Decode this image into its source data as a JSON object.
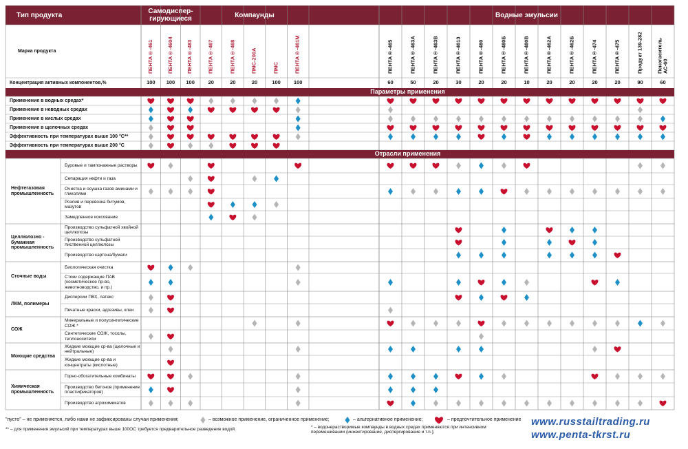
{
  "header": {
    "type_label": "Тип продукта",
    "brand_label": "Марка продукта",
    "concentration_label": "Концентрация активных компонентов,%"
  },
  "groups": [
    {
      "title": "Самодиспер-гирующиеся",
      "name_color": "#b0213a",
      "products": [
        {
          "name": "ПЕНТА®-461",
          "concentration": 100
        },
        {
          "name": "ПЕНТА®-4604",
          "concentration": 100
        },
        {
          "name": "ПЕНТА®-483",
          "concentration": 100
        }
      ]
    },
    {
      "title": "Компаунды",
      "name_color": "#b0213a",
      "products": [
        {
          "name": "ПЕНТА®-467",
          "concentration": 20
        },
        {
          "name": "ПЕНТА®-468",
          "concentration": 20
        },
        {
          "name": "ПМС-200А",
          "concentration": 20
        },
        {
          "name": "ПМС",
          "concentration": 100
        },
        {
          "name": "ПЕНТА®-461М",
          "concentration": 100
        }
      ]
    },
    {
      "title": "Водные эмульсии",
      "name_color": "#111111",
      "products": [
        {
          "name": "ПЕНТА®-465",
          "concentration": 60
        },
        {
          "name": "ПЕНТА®-463А",
          "concentration": 50
        },
        {
          "name": "ПЕНТА®-463В",
          "concentration": 20
        },
        {
          "name": "ПЕНТА®-4613",
          "concentration": 30
        },
        {
          "name": "ПЕНТА®-480",
          "concentration": 20
        },
        {
          "name": "ПЕНТА®-480Б",
          "concentration": 20
        },
        {
          "name": "ПЕНТА®-480В",
          "concentration": 10
        },
        {
          "name": "ПЕНТА®-462А",
          "concentration": 20
        },
        {
          "name": "ПЕНТА®-462Б",
          "concentration": 20
        },
        {
          "name": "ПЕНТА®-474",
          "concentration": 20
        },
        {
          "name": "ПЕНТА®-475",
          "concentration": 20
        },
        {
          "name": "Продукт 139-282",
          "concentration": 90
        },
        {
          "name": "Пеногаситель АС-60",
          "concentration": 60
        }
      ]
    }
  ],
  "parameters": {
    "title": "Параметры применения",
    "rows": [
      {
        "label": "Применение в водных средах*",
        "cells": [
          "h",
          "h",
          "h",
          "g",
          "g",
          "g",
          "g",
          "b",
          "h",
          "h",
          "h",
          "h",
          "h",
          "h",
          "h",
          "h",
          "h",
          "h",
          "h",
          "h",
          "h"
        ]
      },
      {
        "label": "Применение в неводных средах",
        "cells": [
          "b",
          "h",
          "b",
          "h",
          "h",
          "h",
          "h",
          "g",
          "g",
          null,
          null,
          null,
          null,
          null,
          null,
          null,
          null,
          null,
          null,
          "g",
          null
        ]
      },
      {
        "label": "Применение в кислых средах",
        "cells": [
          "b",
          "h",
          "h",
          null,
          null,
          null,
          null,
          "b",
          "g",
          "g",
          "g",
          "g",
          "g",
          "g",
          "g",
          "g",
          "g",
          "g",
          "g",
          "g",
          "b"
        ]
      },
      {
        "label": "Применение в щелочных средах",
        "cells": [
          "g",
          "h",
          "h",
          null,
          null,
          null,
          null,
          "b",
          "h",
          "h",
          "h",
          "h",
          "h",
          "h",
          "h",
          "h",
          "h",
          "h",
          "h",
          "h",
          "h"
        ]
      },
      {
        "label": "Эффективность при температурах выше 100 °С**",
        "cells": [
          "g",
          "h",
          "h",
          "h",
          "h",
          "h",
          "h",
          "g",
          "b",
          "b",
          "b",
          "b",
          "h",
          "b",
          "h",
          "b",
          "b",
          "b",
          "b",
          "b",
          "b"
        ]
      },
      {
        "label": "Эффективность при температурах выше 200 °С",
        "cells": [
          "g",
          "h",
          "g",
          "g",
          "h",
          "h",
          "h",
          null,
          null,
          null,
          null,
          null,
          null,
          null,
          null,
          null,
          null,
          null,
          null,
          null,
          null
        ]
      }
    ]
  },
  "industries": {
    "title": "Отрасли применения",
    "groups": [
      {
        "name": "Нефтегазовая промышленность",
        "rows": [
          {
            "label": "Буровые и тампонажные растворы",
            "cells": [
              "h",
              "g",
              null,
              "h",
              null,
              null,
              null,
              "h",
              "h",
              "h",
              "h",
              "g",
              "b",
              "g",
              "h",
              null,
              null,
              null,
              null,
              "g",
              "g"
            ]
          },
          {
            "label": "Сепарация нефти и газа",
            "cells": [
              null,
              null,
              "g",
              "h",
              null,
              "g",
              "b",
              null,
              null,
              null,
              null,
              null,
              null,
              null,
              null,
              null,
              null,
              null,
              null,
              null,
              null
            ]
          },
          {
            "label": "Очистка и осушка газов аминами и гликолями",
            "cells": [
              "g",
              "g",
              "g",
              "h",
              null,
              null,
              null,
              null,
              "b",
              "g",
              "g",
              "b",
              "b",
              "h",
              "g",
              "g",
              "g",
              "g",
              "g",
              "g",
              "g"
            ]
          },
          {
            "label": "Розлив и перевозка битумов, мазутов",
            "cells": [
              null,
              null,
              null,
              "h",
              "b",
              "b",
              "g",
              null,
              null,
              null,
              null,
              null,
              null,
              null,
              null,
              null,
              null,
              null,
              null,
              null,
              null
            ]
          },
          {
            "label": "Замедленное коксование",
            "cells": [
              null,
              null,
              null,
              "b",
              "h",
              "g",
              null,
              null,
              null,
              null,
              null,
              null,
              null,
              null,
              null,
              null,
              null,
              null,
              null,
              null,
              null
            ]
          }
        ]
      },
      {
        "name": "Целлюлозно - бумажная промышленность",
        "rows": [
          {
            "label": "Производство сульфатной хвойной целлюлозы",
            "cells": [
              null,
              null,
              null,
              null,
              null,
              null,
              null,
              null,
              null,
              null,
              null,
              "h",
              null,
              "b",
              null,
              "h",
              "b",
              "b",
              null,
              null,
              null
            ]
          },
          {
            "label": "Производство сульфатной лиственной целлюлозы",
            "cells": [
              null,
              null,
              null,
              null,
              null,
              null,
              null,
              null,
              null,
              null,
              null,
              "h",
              null,
              "b",
              null,
              "b",
              "h",
              "b",
              null,
              null,
              null
            ]
          },
          {
            "label": "Производство картона/бумаги",
            "cells": [
              null,
              null,
              null,
              null,
              null,
              null,
              null,
              null,
              null,
              null,
              null,
              "b",
              "b",
              "b",
              null,
              "b",
              "b",
              "b",
              "h",
              null,
              null
            ]
          }
        ]
      },
      {
        "name": "Сточные воды",
        "rows": [
          {
            "label": "Биологическая очистка",
            "cells": [
              "h",
              "b",
              "g",
              null,
              null,
              null,
              null,
              "g",
              null,
              null,
              null,
              null,
              null,
              null,
              null,
              null,
              null,
              null,
              null,
              null,
              null
            ]
          },
          {
            "label": "Стоки содержащие ПАВ (косметическое пр-во, животноводство, и пр.)",
            "cells": [
              "b",
              "b",
              null,
              null,
              null,
              null,
              null,
              "g",
              "b",
              null,
              null,
              "b",
              "h",
              "b",
              "g",
              null,
              null,
              "h",
              "b",
              null,
              null
            ]
          }
        ]
      },
      {
        "name": "ЛКМ, полимеры",
        "rows": [
          {
            "label": "Дисперсии ПВХ, латекс",
            "cells": [
              "g",
              "h",
              null,
              null,
              null,
              null,
              null,
              null,
              null,
              null,
              null,
              "h",
              "b",
              "h",
              "b",
              null,
              null,
              null,
              null,
              null,
              null
            ]
          },
          {
            "label": "Печатные краски, адгезивы, клеи",
            "cells": [
              "g",
              "h",
              null,
              null,
              null,
              null,
              null,
              null,
              "g",
              null,
              null,
              null,
              null,
              null,
              null,
              null,
              null,
              null,
              null,
              null,
              null
            ]
          }
        ]
      },
      {
        "name": "СОЖ",
        "rows": [
          {
            "label": "Минеральные и полусинтетические СОЖ *",
            "cells": [
              null,
              null,
              null,
              null,
              null,
              "g",
              null,
              "g",
              "h",
              "g",
              "g",
              "g",
              "h",
              "g",
              "g",
              "g",
              "g",
              "g",
              "g",
              "b",
              "g"
            ]
          },
          {
            "label": "Синтетические СОЖ, тосолы, теплоносители",
            "cells": [
              "g",
              "h",
              null,
              null,
              null,
              null,
              null,
              null,
              null,
              null,
              null,
              null,
              "g",
              null,
              null,
              null,
              null,
              null,
              null,
              null,
              null
            ]
          }
        ]
      },
      {
        "name": "Моющие средства",
        "rows": [
          {
            "label": "Жидкие моющие ср-ва (щелочные и нейтральные)",
            "cells": [
              null,
              "g",
              null,
              null,
              null,
              null,
              null,
              "g",
              "b",
              "b",
              null,
              "b",
              "b",
              null,
              null,
              null,
              null,
              "g",
              "h",
              null,
              null
            ]
          },
          {
            "label": "Жидкие моющие ср-ва и концентраты (кислотные)",
            "cells": [
              null,
              "h",
              null,
              null,
              null,
              null,
              null,
              null,
              null,
              null,
              null,
              null,
              null,
              null,
              null,
              null,
              null,
              null,
              null,
              null,
              null
            ]
          }
        ]
      },
      {
        "name": "Химическая промышленность",
        "rows": [
          {
            "label": "Горно-обогатительные комбинаты",
            "cells": [
              "h",
              "h",
              "g",
              null,
              null,
              null,
              null,
              "g",
              "b",
              "b",
              "b",
              "h",
              "b",
              "g",
              null,
              null,
              null,
              "h",
              "g",
              "g",
              "g"
            ]
          },
          {
            "label": "Производство бетонов (применение пластификаторов)",
            "cells": [
              "b",
              "h",
              null,
              null,
              null,
              null,
              null,
              "g",
              "b",
              "b",
              "b",
              null,
              null,
              null,
              null,
              null,
              null,
              null,
              null,
              null,
              null
            ]
          },
          {
            "label": "Производство агрохимикатов",
            "cells": [
              "g",
              "g",
              "g",
              null,
              null,
              null,
              null,
              "g",
              "h",
              "b",
              "g",
              "g",
              "g",
              "g",
              "g",
              "g",
              "g",
              "g",
              "g",
              "g",
              "h"
            ]
          }
        ]
      }
    ]
  },
  "legend": [
    {
      "text": "\"пусто\" – не применяется, либо нами не зафиксированы случаи применения;"
    },
    {
      "symbol": "g",
      "color": "#b5b5b5",
      "text": "– возможное применение, ограниченное применение;"
    },
    {
      "symbol": "b",
      "color": "#1e90c8",
      "text": "– альтернативное применение;"
    },
    {
      "symbol": "h",
      "color": "#c8102e",
      "text": "– предпочтительное применение"
    }
  ],
  "notes": [
    "** – для применения эмульсий при температурах выше 100ОС требуется предварительное разведение водой.",
    "* – водонерастворимые компаунды в водных средах применяются при интенсивном перемешивании (инжектирование, диспергирование и т.п.);"
  ],
  "websites": [
    "www.russtailtrading.ru",
    "www.penta-tkrst.ru"
  ]
}
